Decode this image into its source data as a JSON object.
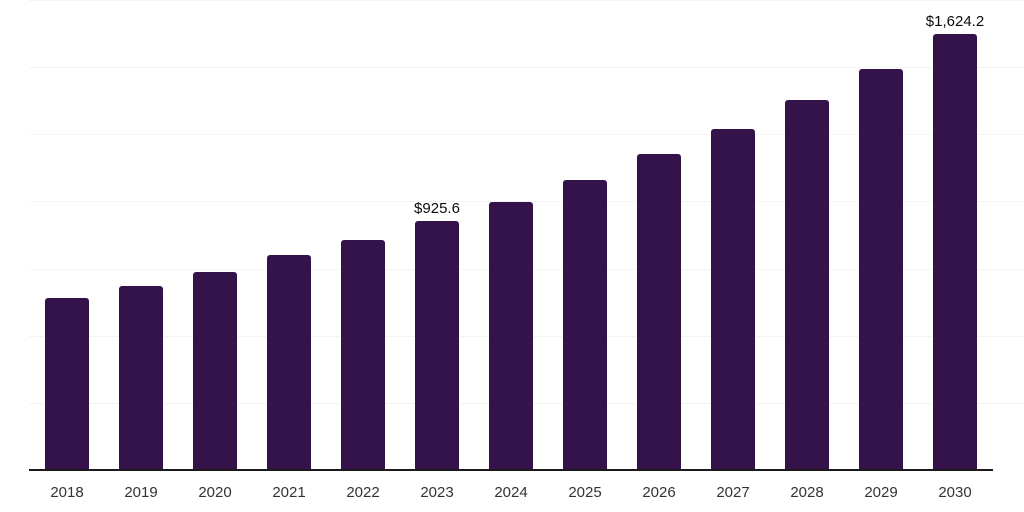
{
  "chart_data": {
    "type": "bar",
    "title": "",
    "xlabel": "",
    "ylabel": "",
    "categories": [
      "2018",
      "2019",
      "2020",
      "2021",
      "2022",
      "2023",
      "2024",
      "2025",
      "2026",
      "2027",
      "2028",
      "2029",
      "2030"
    ],
    "values": [
      640,
      684,
      737,
      800,
      856,
      925.6,
      999,
      1080,
      1175,
      1271,
      1378,
      1492,
      1624.2
    ],
    "point_labels": {
      "2023": "$925.6",
      "2030": "$1,624.2"
    },
    "ylim": [
      0,
      1750
    ],
    "gridline_step": 250,
    "grid": "horizontal",
    "legend": "none",
    "currency_unit": "$"
  },
  "style": {
    "bar_color": "#331349",
    "axis_line_color": "#1a1a1a",
    "gridline_color": "#f4f4f4",
    "tick_label_color": "#333333",
    "data_label_color": "#0a0a0a",
    "background": "#ffffff"
  }
}
